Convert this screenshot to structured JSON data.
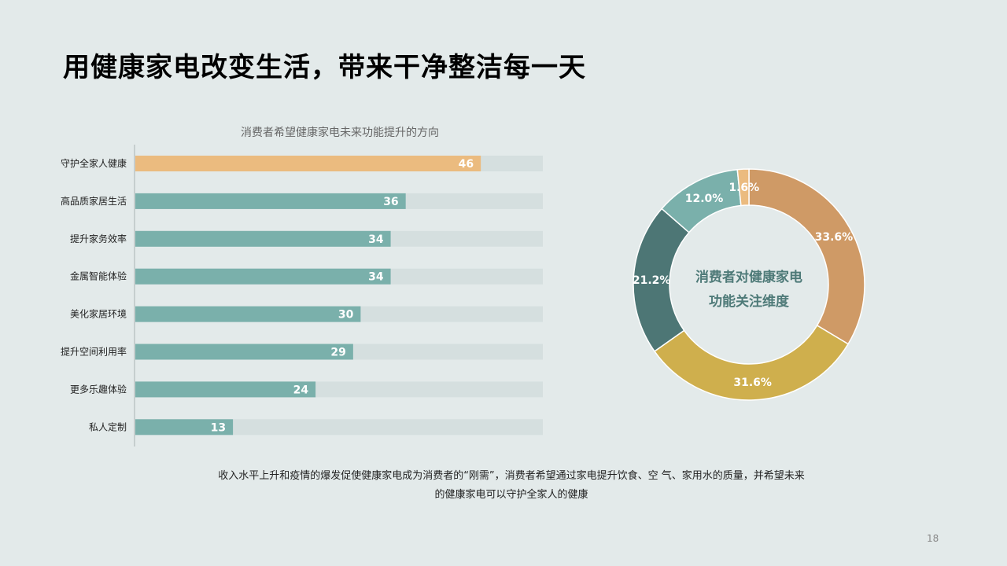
{
  "title": "用健康家电改变生活，带来干净整洁每一天",
  "caption_lines": [
    "收入水平上升和疫情的爆发促使健康家电成为消费者的“刚需”，消费者希望通过家电提升饮食、空 气、家用水的质量，并希望未来",
    "的健康家电可以守护全家人的健康"
  ],
  "page_number": "18",
  "chart_data": [
    {
      "type": "bar",
      "orientation": "horizontal",
      "title": "消费者希望健康家电未来功能提升的方向",
      "categories": [
        "守护全家人健康",
        "高品质家居生活",
        "提升家务效率",
        "金属智能体验",
        "美化家居环境",
        "提升空间利用率",
        "更多乐趣体验",
        "私人定制"
      ],
      "values": [
        46,
        36,
        34,
        34,
        30,
        29,
        24,
        13
      ],
      "value_labels": [
        "46",
        "36",
        "34",
        "34",
        "30",
        "29",
        "24",
        "13"
      ],
      "xlim": [
        0,
        50
      ],
      "grid": false,
      "background_track": true,
      "colors": {
        "highlight": "#ebbb7f",
        "bar": "#7ab0ab",
        "track": "#d5dfdf",
        "label": "#ffffff"
      }
    },
    {
      "type": "pie",
      "donut": true,
      "center_label": [
        "消费者对健康家电",
        "功能关注维度"
      ],
      "values": [
        33.6,
        31.6,
        21.2,
        12.0,
        1.6
      ],
      "value_labels": [
        "33.6%",
        "31.6%",
        "21.2%",
        "12.0%",
        "1.6%"
      ],
      "colors": [
        "#cf9a66",
        "#cfaf4d",
        "#4d7675",
        "#7ab0ab",
        "#ebbb7f"
      ],
      "start_angle": "12 o'clock",
      "direction": "clockwise"
    }
  ]
}
